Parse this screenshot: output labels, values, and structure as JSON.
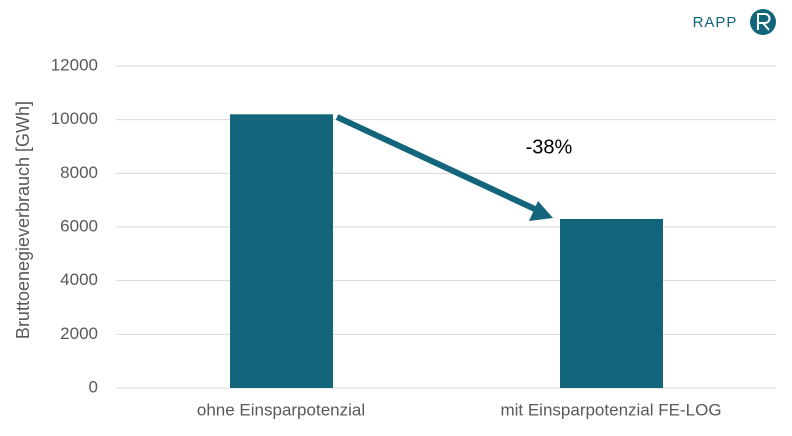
{
  "brand": {
    "name": "RAPP"
  },
  "chart_data": {
    "type": "bar",
    "y_label": "Bruttoenegieverbrauch [GWh]",
    "annotation": "-38%",
    "categories": [
      "ohne Einsparpotenzial",
      "mit Einsparpotenzial FE-LOG"
    ],
    "values": [
      10200,
      6300
    ],
    "color": "#12657a",
    "ylim": [
      0,
      12000
    ],
    "yticks": [
      0,
      2000,
      4000,
      6000,
      8000,
      10000,
      12000
    ],
    "grid": true
  }
}
